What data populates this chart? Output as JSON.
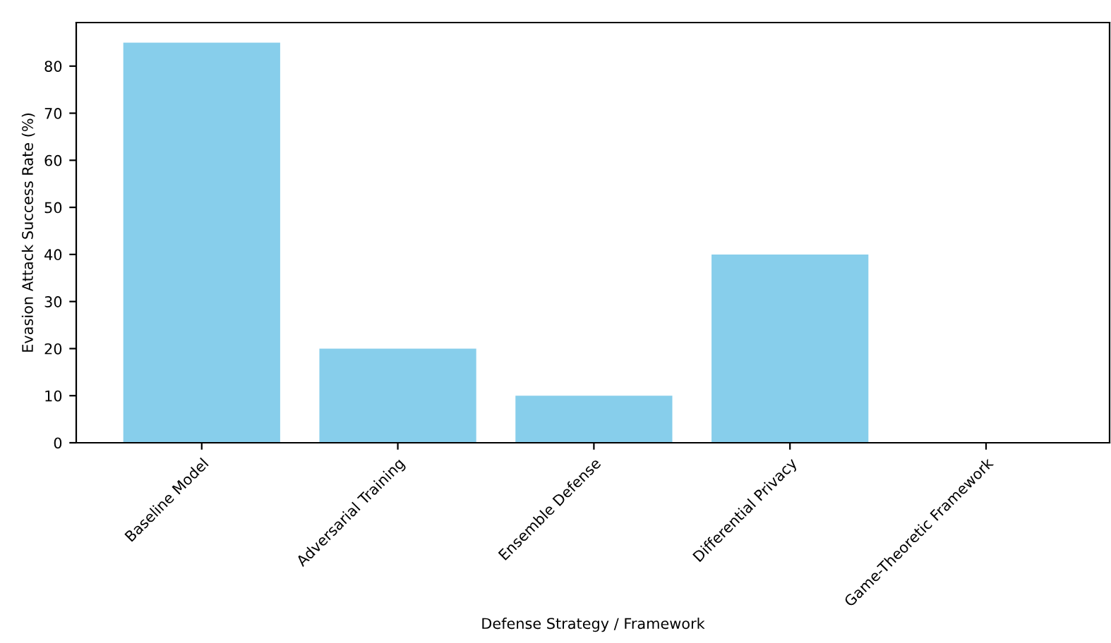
{
  "chart_data": {
    "type": "bar",
    "xlabel": "Defense Strategy / Framework",
    "ylabel": "Evasion Attack Success Rate (%)",
    "categories": [
      "Baseline Model",
      "Adversarial Training",
      "Ensemble Defense",
      "Differential Privacy",
      "Game-Theoretic Framework"
    ],
    "values": [
      85,
      20,
      10,
      40,
      0
    ],
    "color": "#87ceeb",
    "ylim": [
      0,
      89.25
    ],
    "yticks": [
      0,
      10,
      20,
      30,
      40,
      50,
      60,
      70,
      80
    ],
    "grid": false
  }
}
